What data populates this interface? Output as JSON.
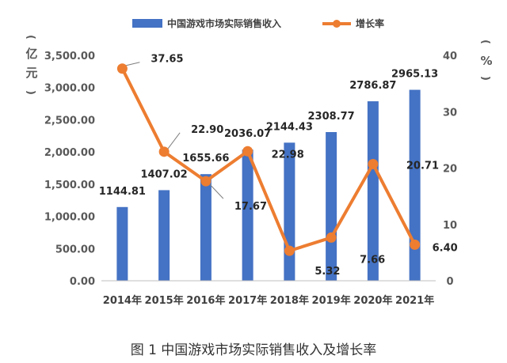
{
  "chart_data": {
    "type": "bar",
    "categories": [
      "2014年",
      "2015年",
      "2016年",
      "2017年",
      "2018年",
      "2019年",
      "2020年",
      "2021年"
    ],
    "series": [
      {
        "name": "中国游戏市场实际销售收入",
        "type": "bar",
        "axis": "left",
        "values": [
          1144.81,
          1407.02,
          1655.66,
          2036.07,
          2144.43,
          2308.77,
          2786.87,
          2965.13
        ],
        "labels": [
          "1144.81",
          "1407.02",
          "1655.66",
          "2036.07",
          "2144.43",
          "2308.77",
          "2786.87",
          "2965.13"
        ],
        "color": "#4472C4"
      },
      {
        "name": "增长率",
        "type": "line",
        "axis": "right",
        "values": [
          37.65,
          22.9,
          17.67,
          22.98,
          5.32,
          7.66,
          20.71,
          6.4
        ],
        "labels": [
          "37.65",
          "22.90",
          "17.67",
          "22.98",
          "5.32",
          "7.66",
          "20.71",
          "6.40"
        ],
        "color": "#ED7D31"
      }
    ],
    "y_left": {
      "label": "亿元",
      "ylim": [
        0,
        3500
      ],
      "ticks": [
        "0.00",
        "500.00",
        "1,000.00",
        "1,500.00",
        "2,000.00",
        "2,500.00",
        "3,000.00",
        "3,500.00"
      ]
    },
    "y_right": {
      "label": "%",
      "ylim": [
        0,
        40
      ],
      "ticks": [
        "0",
        "10",
        "20",
        "30",
        "40"
      ]
    },
    "legend_placement": "top",
    "grid": false
  },
  "caption": "图 1 中国游戏市场实际销售收入及增长率"
}
